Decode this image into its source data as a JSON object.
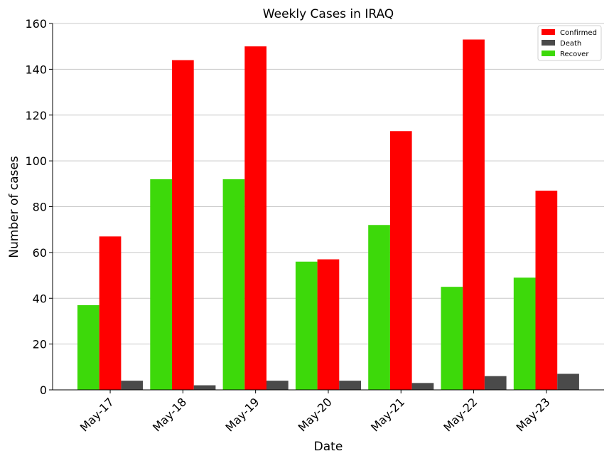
{
  "chart_data": {
    "type": "bar",
    "title": "Weekly Cases in IRAQ",
    "xlabel": "Date",
    "ylabel": "Number of cases",
    "categories": [
      "May-17",
      "May-18",
      "May-19",
      "May-20",
      "May-21",
      "May-22",
      "May-23"
    ],
    "ylim": [
      0,
      160
    ],
    "yticks": [
      0,
      20,
      40,
      60,
      80,
      100,
      120,
      140,
      160
    ],
    "grid": "horizontal",
    "legend_position": "top-right",
    "series": [
      {
        "name": "Recover",
        "color": "#3dd90a",
        "values": [
          37,
          92,
          92,
          56,
          72,
          45,
          49
        ]
      },
      {
        "name": "Confirmed",
        "color": "#ff0000",
        "values": [
          67,
          144,
          150,
          57,
          113,
          153,
          87
        ]
      },
      {
        "name": "Death",
        "color": "#4a4a4a",
        "values": [
          4,
          2,
          4,
          4,
          3,
          6,
          7
        ]
      }
    ],
    "legend_order": [
      "Confirmed",
      "Death",
      "Recover"
    ]
  }
}
